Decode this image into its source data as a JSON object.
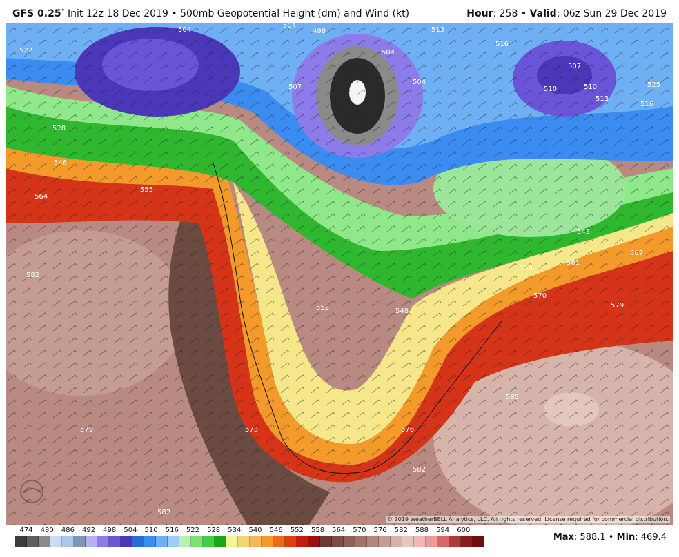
{
  "header": {
    "model": "GFS 0.25",
    "degree": "°",
    "init_label": "Init 12z 18 Dec 2019",
    "bullet": "•",
    "field": "500mb Geopotential Height (dm) and Wind (kt)",
    "hour_label": "Hour",
    "hour_value": ": 258",
    "valid_label": "Valid",
    "valid_value": ": 06z Sun 29 Dec 2019"
  },
  "contour_labels": [
    {
      "text": "504"
    },
    {
      "text": "504"
    },
    {
      "text": "498"
    },
    {
      "text": "513"
    },
    {
      "text": "516"
    },
    {
      "text": "507"
    },
    {
      "text": "504"
    },
    {
      "text": "510"
    },
    {
      "text": "513"
    },
    {
      "text": "516"
    },
    {
      "text": "522"
    },
    {
      "text": "507"
    },
    {
      "text": "510"
    },
    {
      "text": "504"
    },
    {
      "text": "528"
    },
    {
      "text": "546"
    },
    {
      "text": "564"
    },
    {
      "text": "555"
    },
    {
      "text": "582"
    },
    {
      "text": "579"
    },
    {
      "text": "573"
    },
    {
      "text": "576"
    },
    {
      "text": "582"
    },
    {
      "text": "582"
    },
    {
      "text": "585"
    },
    {
      "text": "579"
    },
    {
      "text": "570"
    },
    {
      "text": "567"
    },
    {
      "text": "561"
    },
    {
      "text": "558"
    },
    {
      "text": "543"
    },
    {
      "text": "525"
    },
    {
      "text": "552"
    },
    {
      "text": "548"
    }
  ],
  "copyright": "© 2019 WeatherBELL Analytics, LLC. All rights reserved. License required for commercial distribution.",
  "colorbar": {
    "labels": [
      "474",
      "480",
      "486",
      "492",
      "498",
      "504",
      "510",
      "516",
      "522",
      "528",
      "534",
      "540",
      "546",
      "552",
      "558",
      "564",
      "570",
      "576",
      "582",
      "588",
      "594",
      "600"
    ],
    "colors": [
      "#3b3b3b",
      "#5e5e5e",
      "#8a8a8a",
      "#c6dcf7",
      "#a9c8ee",
      "#7f95b5",
      "#b9b0f0",
      "#8c7cea",
      "#6a55d9",
      "#4a38b8",
      "#2b6bd9",
      "#3b8cf0",
      "#6fb0f5",
      "#9ccff8",
      "#b8f0b0",
      "#7fe07a",
      "#3fcf3f",
      "#18a818",
      "#f6f39a",
      "#f0d870",
      "#f6b95a",
      "#f39a2a",
      "#ee6a18",
      "#e23c10",
      "#c21b10",
      "#9c0f0f",
      "#6b3a33",
      "#7d4c44",
      "#8f5e55",
      "#a07268",
      "#b4877d",
      "#c49c92",
      "#d4b2a8",
      "#e3c6bc",
      "#f2b8b8",
      "#ec9b9b",
      "#d86868",
      "#b03a3a",
      "#8a1c1c",
      "#6e0e0e"
    ]
  },
  "stats": {
    "max_label": "Max",
    "max_value": ": 588.1",
    "min_label": "Min",
    "min_value": ": 469.4",
    "bullet": "•"
  },
  "colors": {
    "land_brown": "#b88a82",
    "ridge_dark": "#6b4a42",
    "trough_gray": "#2a2a2a"
  }
}
